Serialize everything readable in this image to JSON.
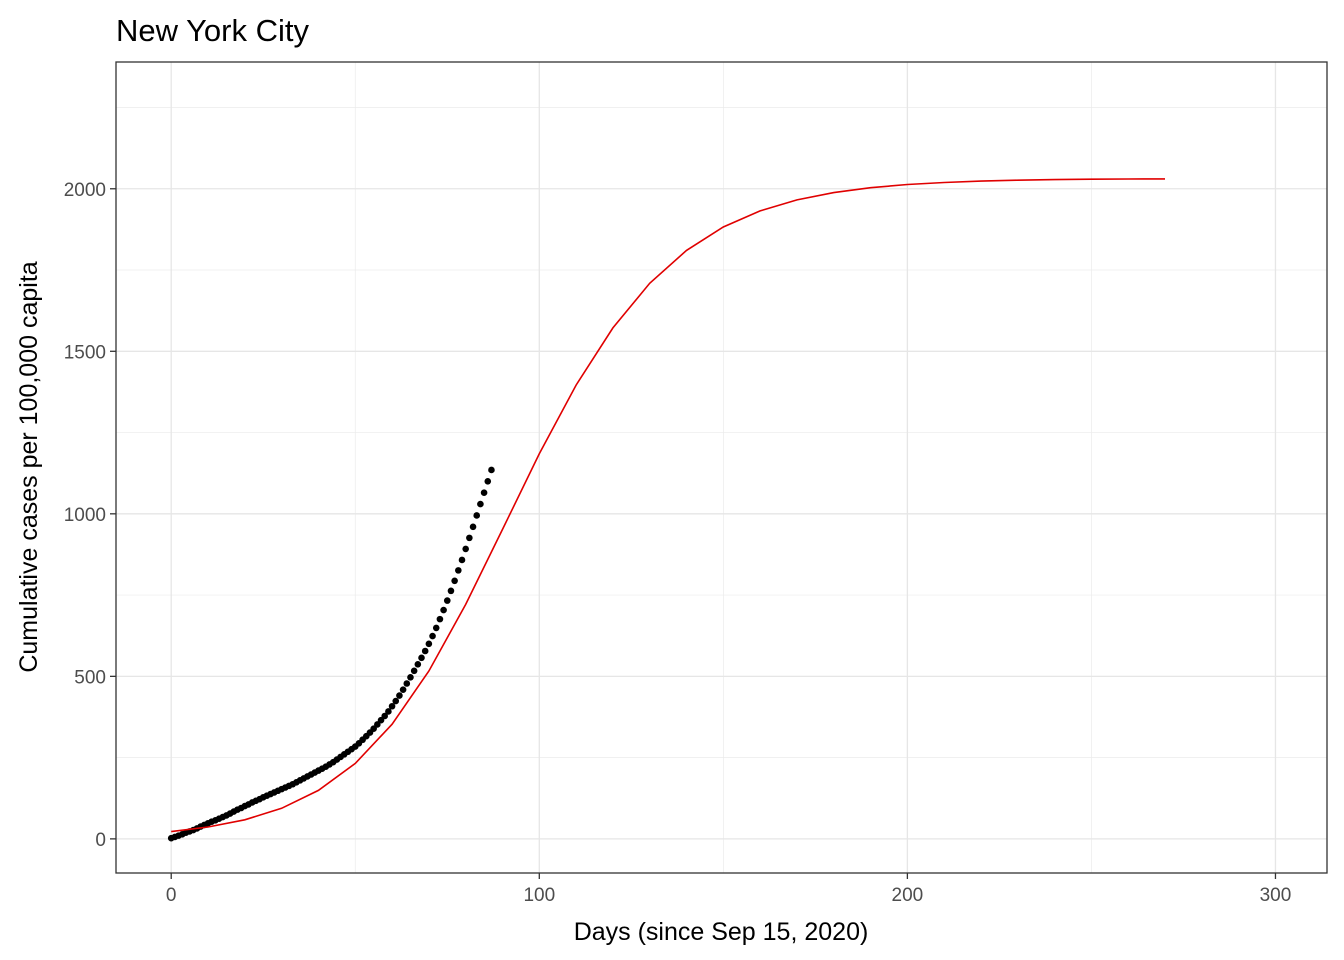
{
  "chart_data": {
    "type": "scatter",
    "title": "New York City",
    "xlabel": "Days (since Sep 15, 2020)",
    "ylabel": "Cumulative cases per 100,000 capita",
    "xlim": [
      -15,
      314
    ],
    "ylim": [
      -105,
      2390
    ],
    "x_ticks": [
      0,
      100,
      200,
      300
    ],
    "y_ticks": [
      0,
      500,
      1000,
      1500,
      2000
    ],
    "x_tick_labels": [
      "0",
      "100",
      "200",
      "300"
    ],
    "y_tick_labels": [
      "0",
      "500",
      "1000",
      "1500",
      "2000"
    ],
    "grid": true,
    "legend": "none",
    "series": [
      {
        "kind": "points",
        "color": "#000000",
        "points": [
          [
            0,
            2
          ],
          [
            1,
            6
          ],
          [
            2,
            10
          ],
          [
            3,
            14
          ],
          [
            4,
            19
          ],
          [
            5,
            23
          ],
          [
            6,
            27
          ],
          [
            7,
            32
          ],
          [
            8,
            38
          ],
          [
            9,
            43
          ],
          [
            10,
            48
          ],
          [
            11,
            53
          ],
          [
            12,
            57
          ],
          [
            13,
            62
          ],
          [
            14,
            67
          ],
          [
            15,
            72
          ],
          [
            16,
            78
          ],
          [
            17,
            84
          ],
          [
            18,
            90
          ],
          [
            19,
            95
          ],
          [
            20,
            101
          ],
          [
            21,
            106
          ],
          [
            22,
            112
          ],
          [
            23,
            117
          ],
          [
            24,
            122
          ],
          [
            25,
            128
          ],
          [
            26,
            133
          ],
          [
            27,
            138
          ],
          [
            28,
            143
          ],
          [
            29,
            148
          ],
          [
            30,
            153
          ],
          [
            31,
            158
          ],
          [
            32,
            163
          ],
          [
            33,
            168
          ],
          [
            34,
            174
          ],
          [
            35,
            180
          ],
          [
            36,
            186
          ],
          [
            37,
            192
          ],
          [
            38,
            198
          ],
          [
            39,
            204
          ],
          [
            40,
            210
          ],
          [
            41,
            216
          ],
          [
            42,
            222
          ],
          [
            43,
            229
          ],
          [
            44,
            236
          ],
          [
            45,
            244
          ],
          [
            46,
            252
          ],
          [
            47,
            260
          ],
          [
            48,
            268
          ],
          [
            49,
            276
          ],
          [
            50,
            284
          ],
          [
            51,
            294
          ],
          [
            52,
            305
          ],
          [
            53,
            316
          ],
          [
            54,
            327
          ],
          [
            55,
            339
          ],
          [
            56,
            352
          ],
          [
            57,
            365
          ],
          [
            58,
            378
          ],
          [
            59,
            392
          ],
          [
            60,
            408
          ],
          [
            61,
            424
          ],
          [
            62,
            441
          ],
          [
            63,
            459
          ],
          [
            64,
            478
          ],
          [
            65,
            497
          ],
          [
            66,
            517
          ],
          [
            67,
            537
          ],
          [
            68,
            557
          ],
          [
            69,
            578
          ],
          [
            70,
            600
          ],
          [
            71,
            624
          ],
          [
            72,
            649
          ],
          [
            73,
            676
          ],
          [
            74,
            704
          ],
          [
            75,
            733
          ],
          [
            76,
            763
          ],
          [
            77,
            794
          ],
          [
            78,
            826
          ],
          [
            79,
            858
          ],
          [
            80,
            892
          ],
          [
            81,
            926
          ],
          [
            82,
            960
          ],
          [
            83,
            995
          ],
          [
            84,
            1030
          ],
          [
            85,
            1065
          ],
          [
            86,
            1100
          ],
          [
            87,
            1135
          ]
        ]
      },
      {
        "kind": "line",
        "color": "#e00000",
        "curve": [
          [
            0,
            22.5
          ],
          [
            10,
            36.4
          ],
          [
            20,
            58.7
          ],
          [
            30,
            94.1
          ],
          [
            40,
            149.2
          ],
          [
            50,
            232.3
          ],
          [
            60,
            352.7
          ],
          [
            70,
            516.4
          ],
          [
            80,
            721.3
          ],
          [
            90,
            952.1
          ],
          [
            100,
            1184.8
          ],
          [
            110,
            1396.0
          ],
          [
            120,
            1572.0
          ],
          [
            130,
            1709.1
          ],
          [
            140,
            1810.4
          ],
          [
            150,
            1882.3
          ],
          [
            160,
            1932.0
          ],
          [
            170,
            1965.8
          ],
          [
            180,
            1988.3
          ],
          [
            190,
            2003.2
          ],
          [
            200,
            2013.0
          ],
          [
            210,
            2019.4
          ],
          [
            220,
            2023.6
          ],
          [
            230,
            2026.3
          ],
          [
            240,
            2028.1
          ],
          [
            250,
            2029.3
          ],
          [
            260,
            2030.0
          ],
          [
            270,
            2030.5
          ]
        ]
      }
    ]
  }
}
